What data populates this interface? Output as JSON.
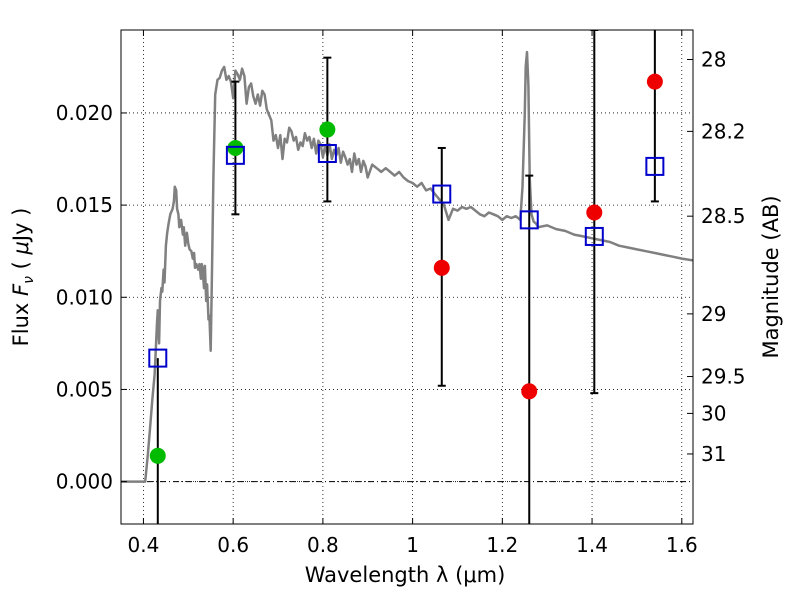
{
  "chart_data": {
    "type": "scatter",
    "xlabel": "Wavelength  λ (μm)",
    "ylabel_parts": [
      "Flux  ",
      "F",
      "ν",
      "  ( ",
      "μ",
      "Jy )"
    ],
    "y2label": "Magnitude (AB)",
    "xlim": [
      0.35,
      1.625
    ],
    "ylim": [
      -0.0023,
      0.0245
    ],
    "grid": true,
    "xticks": [
      0.4,
      0.6,
      0.8,
      1.0,
      1.2,
      1.4,
      1.6
    ],
    "xtick_labels": [
      "0.4",
      "0.6",
      "0.8",
      "1",
      "1.2",
      "1.4",
      "1.6"
    ],
    "yticks": [
      0.0,
      0.005,
      0.01,
      0.015,
      0.02
    ],
    "ytick_labels": [
      "0.000",
      "0.005",
      "0.010",
      "0.015",
      "0.020"
    ],
    "mag_ticks": [
      {
        "label": "28",
        "flux": 0.0229
      },
      {
        "label": "28.2",
        "flux": 0.019
      },
      {
        "label": "28.5",
        "flux": 0.0144
      },
      {
        "label": "29",
        "flux": 0.0091
      },
      {
        "label": "29.5",
        "flux": 0.0057
      },
      {
        "label": "30",
        "flux": 0.0037
      },
      {
        "label": "31",
        "flux": 0.0015
      }
    ],
    "dashdot_line_y": 0.0,
    "model_spectrum": {
      "color": "#808080",
      "x": [
        0.35,
        0.404,
        0.41,
        0.415,
        0.42,
        0.425,
        0.427,
        0.43,
        0.432,
        0.435,
        0.437,
        0.44,
        0.442,
        0.445,
        0.447,
        0.45,
        0.453,
        0.456,
        0.46,
        0.465,
        0.468,
        0.47,
        0.473,
        0.475,
        0.478,
        0.48,
        0.484,
        0.488,
        0.49,
        0.493,
        0.497,
        0.5,
        0.503,
        0.507,
        0.51,
        0.513,
        0.515,
        0.518,
        0.522,
        0.525,
        0.528,
        0.53,
        0.532,
        0.535,
        0.537,
        0.54,
        0.542,
        0.545,
        0.547,
        0.55,
        0.553,
        0.556,
        0.56,
        0.565,
        0.57,
        0.575,
        0.58,
        0.585,
        0.59,
        0.595,
        0.6,
        0.605,
        0.61,
        0.615,
        0.62,
        0.625,
        0.63,
        0.635,
        0.64,
        0.645,
        0.65,
        0.655,
        0.66,
        0.665,
        0.67,
        0.675,
        0.68,
        0.685,
        0.69,
        0.695,
        0.7,
        0.705,
        0.71,
        0.715,
        0.72,
        0.725,
        0.73,
        0.735,
        0.74,
        0.745,
        0.75,
        0.755,
        0.76,
        0.765,
        0.77,
        0.775,
        0.78,
        0.785,
        0.79,
        0.795,
        0.8,
        0.805,
        0.81,
        0.815,
        0.82,
        0.825,
        0.83,
        0.835,
        0.84,
        0.845,
        0.85,
        0.855,
        0.86,
        0.865,
        0.87,
        0.875,
        0.88,
        0.885,
        0.89,
        0.895,
        0.9,
        0.91,
        0.92,
        0.93,
        0.94,
        0.95,
        0.96,
        0.97,
        0.98,
        0.99,
        1.0,
        1.01,
        1.02,
        1.03,
        1.04,
        1.05,
        1.06,
        1.07,
        1.08,
        1.09,
        1.1,
        1.11,
        1.12,
        1.13,
        1.14,
        1.15,
        1.16,
        1.17,
        1.18,
        1.19,
        1.2,
        1.21,
        1.22,
        1.23,
        1.24,
        1.245,
        1.25,
        1.252,
        1.255,
        1.258,
        1.261,
        1.265,
        1.27,
        1.275,
        1.28,
        1.3,
        1.32,
        1.34,
        1.36,
        1.38,
        1.4,
        1.42,
        1.44,
        1.46,
        1.48,
        1.5,
        1.52,
        1.54,
        1.56,
        1.58,
        1.6,
        1.625
      ],
      "y": [
        0.0,
        0.0,
        0.0015,
        0.003,
        0.0045,
        0.0058,
        0.0068,
        0.0085,
        0.0093,
        0.0075,
        0.0098,
        0.0105,
        0.0103,
        0.0115,
        0.0108,
        0.0128,
        0.0135,
        0.014,
        0.0145,
        0.0148,
        0.0152,
        0.016,
        0.0158,
        0.0148,
        0.0145,
        0.0138,
        0.0142,
        0.0134,
        0.0138,
        0.0128,
        0.0135,
        0.0129,
        0.0126,
        0.0125,
        0.0121,
        0.0124,
        0.0116,
        0.0118,
        0.0115,
        0.0118,
        0.011,
        0.0118,
        0.0115,
        0.0105,
        0.0117,
        0.0098,
        0.0107,
        0.0088,
        0.009,
        0.0071,
        0.0118,
        0.0165,
        0.021,
        0.0218,
        0.0219,
        0.0223,
        0.0225,
        0.0218,
        0.022,
        0.0217,
        0.0208,
        0.0223,
        0.0221,
        0.0218,
        0.0224,
        0.022,
        0.0205,
        0.0214,
        0.0216,
        0.0209,
        0.0205,
        0.021,
        0.0204,
        0.0212,
        0.021,
        0.0202,
        0.0199,
        0.0196,
        0.0185,
        0.0188,
        0.0181,
        0.0188,
        0.0175,
        0.0186,
        0.0184,
        0.0192,
        0.019,
        0.0185,
        0.0187,
        0.018,
        0.0184,
        0.0182,
        0.0189,
        0.0185,
        0.0187,
        0.0181,
        0.0186,
        0.0178,
        0.0185,
        0.0183,
        0.0176,
        0.0182,
        0.0177,
        0.0183,
        0.0175,
        0.018,
        0.0177,
        0.0181,
        0.0173,
        0.0179,
        0.0176,
        0.0172,
        0.0175,
        0.0168,
        0.0178,
        0.0172,
        0.0175,
        0.0168,
        0.0174,
        0.0171,
        0.0165,
        0.0172,
        0.017,
        0.0168,
        0.017,
        0.0168,
        0.0166,
        0.0168,
        0.0165,
        0.0163,
        0.0162,
        0.016,
        0.0162,
        0.0158,
        0.0159,
        0.0156,
        0.0153,
        0.015,
        0.0142,
        0.0148,
        0.0147,
        0.0149,
        0.0148,
        0.0149,
        0.0147,
        0.0145,
        0.0144,
        0.0146,
        0.0145,
        0.0144,
        0.0142,
        0.0144,
        0.0143,
        0.0144,
        0.0142,
        0.016,
        0.02,
        0.0225,
        0.0233,
        0.0215,
        0.0165,
        0.0145,
        0.0141,
        0.014,
        0.0138,
        0.0139,
        0.0137,
        0.0136,
        0.0134,
        0.0133,
        0.0132,
        0.0131,
        0.013,
        0.0128,
        0.0127,
        0.0126,
        0.0125,
        0.0124,
        0.0123,
        0.0122,
        0.0121,
        0.012
      ]
    },
    "series": [
      {
        "marker": "circle",
        "color": "#00bb00",
        "points": [
          {
            "x": 0.432,
            "y": 0.0014
          },
          {
            "x": 0.605,
            "y": 0.0181
          },
          {
            "x": 0.81,
            "y": 0.0191
          }
        ]
      },
      {
        "marker": "circle",
        "color": "#ee0000",
        "points": [
          {
            "x": 1.065,
            "y": 0.0116
          },
          {
            "x": 1.26,
            "y": 0.0049
          },
          {
            "x": 1.405,
            "y": 0.0146
          },
          {
            "x": 1.54,
            "y": 0.0217
          }
        ]
      },
      {
        "marker": "open-square",
        "color": "#0000cc",
        "points": [
          {
            "x": 0.432,
            "y": 0.0067,
            "ylo": -0.004,
            "yhi": 0.0067,
            "cap": false
          },
          {
            "x": 0.605,
            "y": 0.0177,
            "ylo": 0.0145,
            "yhi": 0.0217,
            "cap": true
          },
          {
            "x": 0.81,
            "y": 0.0178,
            "ylo": 0.0152,
            "yhi": 0.023,
            "cap": true
          },
          {
            "x": 1.065,
            "y": 0.0156,
            "ylo": 0.0052,
            "yhi": 0.0181,
            "cap": true
          },
          {
            "x": 1.26,
            "y": 0.0142,
            "ylo": -0.004,
            "yhi": 0.0166,
            "cap": true
          },
          {
            "x": 1.405,
            "y": 0.0133,
            "ylo": 0.0048,
            "yhi": 0.0245,
            "cap": true
          },
          {
            "x": 1.54,
            "y": 0.0171,
            "ylo": 0.0152,
            "yhi": 0.026,
            "cap": true
          }
        ]
      }
    ]
  }
}
